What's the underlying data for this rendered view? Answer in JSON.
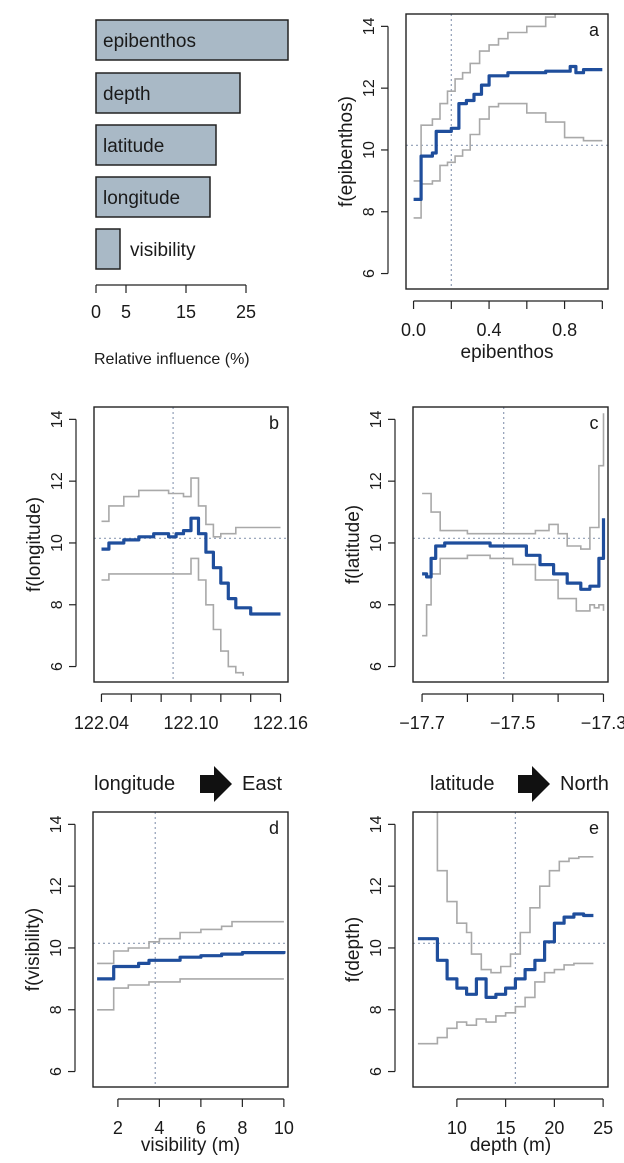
{
  "colors": {
    "fit": "#1f4e9c",
    "ci": "#a9a9a9",
    "bar_fill": "#a9b9c6",
    "ref": "#8f9db5"
  },
  "chart_data": [
    {
      "type": "bar",
      "id": "influence",
      "orientation": "horizontal",
      "categories": [
        "epibenthos",
        "depth",
        "latitude",
        "longitude",
        "visibility"
      ],
      "values": [
        32,
        24,
        20,
        19,
        4
      ],
      "xlabel": "Relative influence (%)",
      "xticks": [
        "0",
        "5",
        "15",
        "25"
      ],
      "xtick_values": [
        0,
        5,
        15,
        25
      ],
      "xlim": [
        0,
        32
      ]
    },
    {
      "type": "line",
      "id": "a",
      "panel_label": "a",
      "xlabel": "epibenthos",
      "ylabel": "f(epibenthos)",
      "xlim": [
        -0.04,
        1.03
      ],
      "ylim": [
        5.5,
        14.4
      ],
      "xticks": [
        "0.0",
        "0.4",
        "0.8"
      ],
      "xtick_values": [
        0.0,
        0.4,
        0.8
      ],
      "xtick_minor": [
        0.2,
        0.6,
        1.0
      ],
      "yticks": [
        "6",
        "8",
        "10",
        "12",
        "14"
      ],
      "ytick_values": [
        6,
        8,
        10,
        12,
        14
      ],
      "ref_x": 0.2,
      "ref_y": 10.15,
      "series": [
        {
          "role": "fit",
          "x": [
            0.0,
            0.04,
            0.1,
            0.12,
            0.16,
            0.2,
            0.24,
            0.28,
            0.32,
            0.36,
            0.4,
            0.5,
            0.6,
            0.7,
            0.8,
            0.83,
            0.86,
            0.9,
            0.95,
            1.0
          ],
          "y": [
            8.4,
            9.8,
            9.9,
            10.6,
            10.6,
            10.7,
            11.5,
            11.6,
            11.8,
            12.1,
            12.4,
            12.5,
            12.5,
            12.55,
            12.55,
            12.7,
            12.5,
            12.6,
            12.6,
            12.6
          ]
        },
        {
          "role": "upper",
          "x": [
            0.0,
            0.04,
            0.1,
            0.14,
            0.18,
            0.22,
            0.26,
            0.3,
            0.35,
            0.4,
            0.45,
            0.5,
            0.6,
            0.7,
            0.75
          ],
          "y": [
            9.0,
            10.8,
            11.0,
            11.5,
            11.9,
            12.3,
            12.5,
            12.8,
            13.2,
            13.4,
            13.6,
            13.8,
            14.0,
            14.3,
            14.4
          ]
        },
        {
          "role": "lower",
          "x": [
            0.0,
            0.04,
            0.1,
            0.14,
            0.18,
            0.22,
            0.26,
            0.3,
            0.35,
            0.4,
            0.45,
            0.5,
            0.6,
            0.7,
            0.8,
            0.9,
            1.0
          ],
          "y": [
            7.8,
            8.9,
            9.0,
            9.5,
            9.6,
            9.8,
            10.0,
            10.5,
            11.0,
            11.4,
            11.5,
            11.5,
            11.2,
            10.9,
            10.4,
            10.3,
            10.3
          ]
        }
      ]
    },
    {
      "type": "line",
      "id": "b",
      "panel_label": "b",
      "xlabel": "longitude",
      "direction_label": "East",
      "ylabel": "f(longitude)",
      "xlim": [
        122.035,
        122.165
      ],
      "ylim": [
        5.5,
        14.4
      ],
      "xticks": [
        "122.04",
        "122.10",
        "122.16"
      ],
      "xtick_values": [
        122.04,
        122.1,
        122.16
      ],
      "xtick_minor": [
        122.06,
        122.08,
        122.12,
        122.14
      ],
      "yticks": [
        "6",
        "8",
        "10",
        "12",
        "14"
      ],
      "ytick_values": [
        6,
        8,
        10,
        12,
        14
      ],
      "ref_x": 122.088,
      "ref_y": 10.15,
      "series": [
        {
          "role": "fit",
          "x": [
            122.04,
            122.045,
            122.055,
            122.065,
            122.075,
            122.085,
            122.09,
            122.095,
            122.1,
            122.105,
            122.11,
            122.115,
            122.12,
            122.125,
            122.13,
            122.14,
            122.15,
            122.16
          ],
          "y": [
            9.8,
            10.0,
            10.1,
            10.2,
            10.3,
            10.2,
            10.3,
            10.4,
            10.8,
            10.3,
            9.7,
            9.2,
            8.7,
            8.2,
            7.9,
            7.7,
            7.7,
            7.7
          ]
        },
        {
          "role": "upper",
          "x": [
            122.04,
            122.045,
            122.055,
            122.065,
            122.075,
            122.085,
            122.095,
            122.1,
            122.105,
            122.11,
            122.115,
            122.12,
            122.13,
            122.14,
            122.15,
            122.16
          ],
          "y": [
            10.7,
            11.2,
            11.5,
            11.7,
            11.7,
            11.6,
            11.5,
            12.1,
            11.2,
            10.6,
            10.2,
            10.3,
            10.5,
            10.5,
            10.5,
            10.5
          ]
        },
        {
          "role": "lower",
          "x": [
            122.04,
            122.045,
            122.055,
            122.065,
            122.075,
            122.085,
            122.095,
            122.1,
            122.105,
            122.11,
            122.115,
            122.12,
            122.125,
            122.13,
            122.135
          ],
          "y": [
            8.8,
            9.0,
            9.0,
            9.0,
            9.0,
            9.0,
            9.0,
            9.5,
            8.8,
            8.0,
            7.2,
            6.5,
            6.0,
            5.8,
            5.7
          ]
        }
      ]
    },
    {
      "type": "line",
      "id": "c",
      "panel_label": "c",
      "xlabel": "latitude",
      "direction_label": "North",
      "ylabel": "f(latitude)",
      "xlim": [
        -17.72,
        -17.29
      ],
      "ylim": [
        5.5,
        14.4
      ],
      "xticks": [
        "−17.7",
        "−17.5",
        "−17.3"
      ],
      "xtick_values": [
        -17.7,
        -17.5,
        -17.3
      ],
      "xtick_minor": [
        -17.6,
        -17.4
      ],
      "yticks": [
        "6",
        "8",
        "10",
        "12",
        "14"
      ],
      "ytick_values": [
        6,
        8,
        10,
        12,
        14
      ],
      "ref_x": -17.52,
      "ref_y": 10.15,
      "series": [
        {
          "role": "fit",
          "x": [
            -17.7,
            -17.69,
            -17.68,
            -17.67,
            -17.65,
            -17.6,
            -17.55,
            -17.5,
            -17.47,
            -17.44,
            -17.41,
            -17.38,
            -17.35,
            -17.33,
            -17.31,
            -17.3
          ],
          "y": [
            9.0,
            8.9,
            9.5,
            9.9,
            10.0,
            10.0,
            9.9,
            9.9,
            9.6,
            9.3,
            9.0,
            8.7,
            8.5,
            8.6,
            9.5,
            10.8
          ]
        },
        {
          "role": "upper",
          "x": [
            -17.7,
            -17.68,
            -17.66,
            -17.6,
            -17.55,
            -17.5,
            -17.45,
            -17.42,
            -17.4,
            -17.38,
            -17.35,
            -17.33,
            -17.31,
            -17.3
          ],
          "y": [
            11.6,
            11.0,
            10.4,
            10.3,
            10.3,
            10.3,
            10.4,
            10.6,
            10.3,
            9.9,
            9.8,
            10.5,
            12.5,
            14.2
          ]
        },
        {
          "role": "lower",
          "x": [
            -17.7,
            -17.69,
            -17.68,
            -17.66,
            -17.6,
            -17.55,
            -17.5,
            -17.45,
            -17.4,
            -17.36,
            -17.34,
            -17.33,
            -17.32,
            -17.31,
            -17.3
          ],
          "y": [
            7.0,
            8.0,
            9.0,
            9.5,
            9.6,
            9.5,
            9.3,
            8.8,
            8.2,
            7.8,
            7.8,
            8.0,
            7.9,
            8.0,
            7.8
          ]
        }
      ]
    },
    {
      "type": "line",
      "id": "d",
      "panel_label": "d",
      "xlabel": "visibility (m)",
      "ylabel": "f(visibility)",
      "xlim": [
        0.8,
        10.2
      ],
      "ylim": [
        5.5,
        14.4
      ],
      "xticks": [
        "2",
        "4",
        "6",
        "8",
        "10"
      ],
      "xtick_values": [
        2,
        4,
        6,
        8,
        10
      ],
      "xtick_minor": [],
      "yticks": [
        "6",
        "8",
        "10",
        "12",
        "14"
      ],
      "ytick_values": [
        6,
        8,
        10,
        12,
        14
      ],
      "ref_x": 3.8,
      "ref_y": 10.15,
      "series": [
        {
          "role": "fit",
          "x": [
            1.0,
            1.5,
            1.8,
            2.5,
            3.0,
            3.5,
            4.0,
            5.0,
            6.0,
            7.0,
            8.0,
            10.0
          ],
          "y": [
            9.0,
            9.0,
            9.4,
            9.4,
            9.5,
            9.6,
            9.6,
            9.7,
            9.75,
            9.8,
            9.85,
            9.9
          ]
        },
        {
          "role": "upper",
          "x": [
            1.0,
            1.5,
            1.8,
            2.5,
            3.5,
            4.0,
            5.0,
            6.0,
            7.0,
            7.5,
            10.0
          ],
          "y": [
            9.5,
            9.5,
            9.9,
            10.0,
            10.2,
            10.3,
            10.5,
            10.6,
            10.7,
            10.85,
            10.85
          ]
        },
        {
          "role": "lower",
          "x": [
            1.0,
            1.5,
            1.8,
            2.5,
            3.5,
            5.0,
            6.0,
            10.0
          ],
          "y": [
            8.0,
            8.0,
            8.7,
            8.8,
            8.9,
            9.0,
            9.0,
            9.0
          ]
        }
      ]
    },
    {
      "type": "line",
      "id": "e",
      "panel_label": "e",
      "xlabel": "depth (m)",
      "ylabel": "f(depth)",
      "xlim": [
        5.5,
        25.5
      ],
      "ylim": [
        5.5,
        14.4
      ],
      "xticks": [
        "10",
        "15",
        "20",
        "25"
      ],
      "xtick_values": [
        10,
        15,
        20,
        25
      ],
      "xtick_minor": [],
      "yticks": [
        "6",
        "8",
        "10",
        "12",
        "14"
      ],
      "ytick_values": [
        6,
        8,
        10,
        12,
        14
      ],
      "ref_x": 16,
      "ref_y": 10.15,
      "series": [
        {
          "role": "fit",
          "x": [
            6.0,
            7.0,
            8.0,
            9.0,
            10.0,
            11.0,
            12.0,
            13.0,
            14.0,
            15.0,
            16.0,
            17.0,
            18.0,
            19.0,
            20.0,
            21.0,
            22.0,
            23.0,
            24.0
          ],
          "y": [
            10.3,
            10.3,
            9.6,
            9.0,
            8.7,
            8.5,
            9.0,
            8.4,
            8.5,
            8.7,
            9.0,
            9.3,
            9.6,
            10.2,
            10.8,
            11.0,
            11.1,
            11.05,
            11.05
          ]
        },
        {
          "role": "upper",
          "x": [
            7.5,
            8.0,
            9.0,
            10.0,
            11.0,
            11.5,
            12.5,
            13.5,
            14.5,
            15.5,
            16.5,
            17.5,
            18.5,
            19.5,
            20.5,
            21.5,
            22.5,
            24.0
          ],
          "y": [
            14.4,
            12.5,
            11.5,
            10.8,
            10.5,
            9.8,
            9.3,
            9.2,
            9.4,
            9.8,
            10.5,
            11.3,
            12.0,
            12.5,
            12.8,
            12.9,
            12.95,
            12.95
          ]
        },
        {
          "role": "lower",
          "x": [
            6.0,
            7.5,
            8.0,
            9.0,
            10.0,
            11.0,
            12.0,
            13.0,
            14.0,
            15.0,
            16.0,
            17.0,
            18.0,
            19.0,
            20.0,
            21.0,
            22.0,
            24.0
          ],
          "y": [
            6.9,
            6.9,
            7.1,
            7.4,
            7.6,
            7.5,
            7.7,
            7.6,
            7.8,
            7.9,
            8.1,
            8.4,
            8.9,
            9.2,
            9.3,
            9.45,
            9.5,
            9.5
          ]
        }
      ]
    }
  ]
}
